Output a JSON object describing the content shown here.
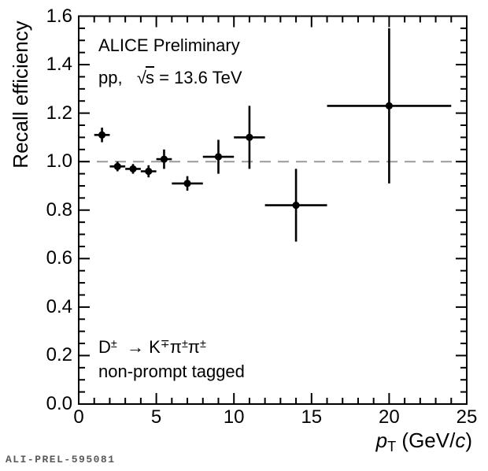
{
  "watermark": "ALI-PREL-595081",
  "chart_data": {
    "type": "scatter",
    "title": "",
    "xlabel": "pT (GeV/c)",
    "ylabel": "Recall efficiency",
    "xlim": [
      0,
      25
    ],
    "ylim": [
      0.0,
      1.6
    ],
    "grid": false,
    "legend": false,
    "frame_color": "#000000",
    "marker_color": "#000000",
    "reference_line": {
      "y": 1.0,
      "style": "long-dash",
      "color": "#999999"
    },
    "xticks": {
      "major": [
        0,
        5,
        10,
        15,
        20,
        25
      ],
      "labels": [
        "0",
        "5",
        "10",
        "15",
        "20",
        "25"
      ],
      "minor_step": 1
    },
    "yticks": {
      "major": [
        0.0,
        0.2,
        0.4,
        0.6,
        0.8,
        1.0,
        1.2,
        1.4,
        1.6
      ],
      "labels": [
        "0.0",
        "0.2",
        "0.4",
        "0.6",
        "0.8",
        "1.0",
        "1.2",
        "1.4",
        "1.6"
      ],
      "minor_step": 0.05
    },
    "series": [
      {
        "name": "D± → K∓π±π±, non-prompt tagged",
        "marker": "filled-circle",
        "points": [
          {
            "x": 1.5,
            "xlo": 1,
            "xhi": 2,
            "y": 1.11,
            "yerr": 0.03
          },
          {
            "x": 2.5,
            "xlo": 2,
            "xhi": 3,
            "y": 0.98,
            "yerr": 0.02
          },
          {
            "x": 3.5,
            "xlo": 3,
            "xhi": 4,
            "y": 0.97,
            "yerr": 0.02
          },
          {
            "x": 4.5,
            "xlo": 4,
            "xhi": 5,
            "y": 0.96,
            "yerr": 0.025
          },
          {
            "x": 5.5,
            "xlo": 5,
            "xhi": 6,
            "y": 1.01,
            "yerr": 0.04
          },
          {
            "x": 7,
            "xlo": 6,
            "xhi": 8,
            "y": 0.91,
            "yerr": 0.03
          },
          {
            "x": 9,
            "xlo": 8,
            "xhi": 10,
            "y": 1.02,
            "yerr": 0.07
          },
          {
            "x": 11,
            "xlo": 10,
            "xhi": 12,
            "y": 1.1,
            "yerr": 0.13
          },
          {
            "x": 14,
            "xlo": 12,
            "xhi": 16,
            "y": 0.82,
            "yerr": 0.15
          },
          {
            "x": 20,
            "xlo": 16,
            "xhi": 24,
            "y": 1.23,
            "yerr": 0.32
          }
        ]
      }
    ],
    "annotations": {
      "alice": [
        {
          "t": "ALICE Preliminary"
        }
      ],
      "energy": [
        {
          "t": "pp,   "
        },
        {
          "t": "√"
        },
        {
          "t": "s",
          "ov": 1
        },
        {
          "t": " = 13.6 TeV"
        }
      ],
      "decay": [
        {
          "t": "D"
        },
        {
          "t": "±",
          "sp": 1
        },
        {
          "t": "  → K"
        },
        {
          "t": "∓",
          "sp": 1
        },
        {
          "t": "π"
        },
        {
          "t": "±",
          "sp": 1
        },
        {
          "t": "π"
        },
        {
          "t": "±",
          "sp": 1
        }
      ],
      "tag": [
        {
          "t": "non-prompt tagged"
        }
      ],
      "xtitle": [
        {
          "t": "p",
          "it": 1
        },
        {
          "t": "T",
          "sb": 1
        },
        {
          "t": " (GeV/"
        },
        {
          "t": "c",
          "it": 1
        },
        {
          "t": ")"
        }
      ],
      "ytitle": [
        {
          "t": "Recall efficiency"
        }
      ]
    }
  }
}
